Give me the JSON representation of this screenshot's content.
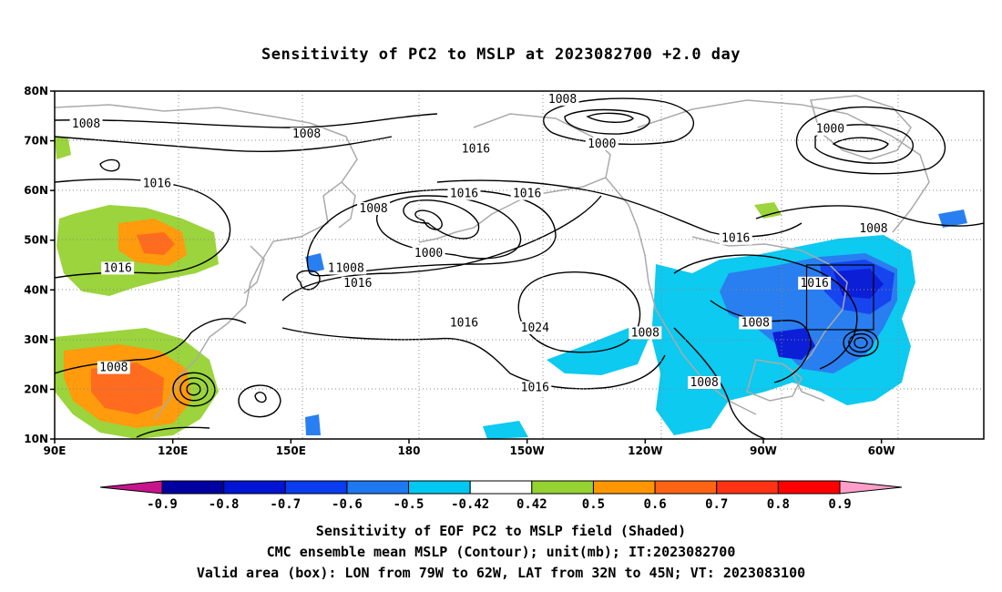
{
  "title": "Sensitivity of PC2 to MSLP at 2023082700 +2.0 day",
  "map": {
    "lat_ticks": [
      "80N",
      "70N",
      "60N",
      "50N",
      "40N",
      "30N",
      "20N",
      "10N"
    ],
    "lon_ticks": [
      "90E",
      "120E",
      "150E",
      "180",
      "150W",
      "120W",
      "90W",
      "60W"
    ],
    "contour_labels": [
      {
        "text": "1008",
        "lon": 98,
        "lat": 73
      },
      {
        "text": "1008",
        "lon": 154,
        "lat": 71
      },
      {
        "text": "1016",
        "lon": 116,
        "lat": 61
      },
      {
        "text": "1016",
        "lon": 106,
        "lat": 44
      },
      {
        "text": "1016",
        "lon": 163,
        "lat": 44
      },
      {
        "text": "1008",
        "lon": 171,
        "lat": 56
      },
      {
        "text": "1000",
        "lon": 185,
        "lat": 47
      },
      {
        "text": "1008",
        "lon": 165,
        "lat": 44
      },
      {
        "text": "1016",
        "lon": 167,
        "lat": 41
      },
      {
        "text": "1016",
        "lon": 197,
        "lat": 68
      },
      {
        "text": "1016",
        "lon": 194,
        "lat": 59
      },
      {
        "text": "1016",
        "lon": 210,
        "lat": 59
      },
      {
        "text": "1008",
        "lon": 219,
        "lat": 78
      },
      {
        "text": "1000",
        "lon": 229,
        "lat": 69
      },
      {
        "text": "1016",
        "lon": 194,
        "lat": 33
      },
      {
        "text": "1024",
        "lon": 212,
        "lat": 32
      },
      {
        "text": "1008",
        "lon": 240,
        "lat": 31
      },
      {
        "text": "1016",
        "lon": 212,
        "lat": 20
      },
      {
        "text": "1016",
        "lon": 263,
        "lat": 50
      },
      {
        "text": "1000",
        "lon": 287,
        "lat": 72
      },
      {
        "text": "1008",
        "lon": 298,
        "lat": 52
      },
      {
        "text": "1016",
        "lon": 283,
        "lat": 41
      },
      {
        "text": "1008",
        "lon": 268,
        "lat": 33
      },
      {
        "text": "1008",
        "lon": 255,
        "lat": 21
      },
      {
        "text": "1008",
        "lon": 105,
        "lat": 24
      }
    ],
    "valid_box": {
      "lon_w": -79,
      "lon_e": -62,
      "lat_s": 32,
      "lat_n": 45
    }
  },
  "colorbar": {
    "labels": [
      "-0.9",
      "-0.8",
      "-0.7",
      "-0.6",
      "-0.5",
      "-0.42",
      "0.42",
      "0.5",
      "0.6",
      "0.7",
      "0.8",
      "0.9"
    ],
    "colors": [
      "#0000a0",
      "#0014d4",
      "#0a3cf0",
      "#1e78f0",
      "#00c8f0",
      "#ffffff",
      "#96d232",
      "#ff9600",
      "#ff6414",
      "#ff3214",
      "#ff0000"
    ],
    "low_end_color": "#c8148c",
    "high_end_color": "#ff9ec8"
  },
  "caption": {
    "line1": "Sensitivity of EOF PC2 to MSLP field (Shaded)",
    "line2": "CMC ensemble mean MSLP (Contour); unit(mb); IT:2023082700",
    "line3": "Valid area (box): LON from 79W to 62W, LAT from 32N to 45N; VT: 2023083100"
  }
}
